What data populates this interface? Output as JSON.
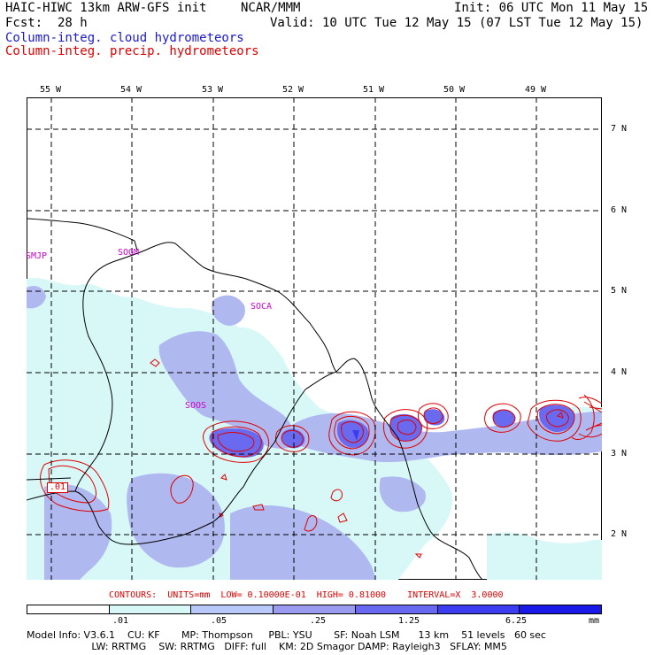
{
  "header": {
    "model": "HAIC-HIWC 13km ARW-GFS init",
    "agency": "NCAR/MMM",
    "init": "Init: 06 UTC Mon 11 May 15",
    "fcst_label": "Fcst:",
    "fcst_value": "28 h",
    "valid": "Valid: 10 UTC Tue 12 May 15 (07 LST Tue 12 May 15)"
  },
  "legend": {
    "cloud": "Column-integ. cloud hydrometeors",
    "precip": "Column-integ. precip. hydrometeors"
  },
  "axes": {
    "lon_labels": [
      "55 W",
      "54 W",
      "53 W",
      "52 W",
      "51 W",
      "50 W",
      "49 W"
    ],
    "lat_labels": [
      "7 N",
      "6 N",
      "5 N",
      "4 N",
      "3 N",
      "2 N"
    ]
  },
  "stations": [
    "SMJP",
    "SOGM",
    "SOCA",
    "SOOS"
  ],
  "contour_label": ".01",
  "contour_info": "CONTOURS:  UNITS=mm  LOW= 0.10000E-01  HIGH= 0.81000    INTERVAL=X  3.0000",
  "scale": {
    "ticks": [
      ".01",
      ".05",
      ".25",
      "1.25",
      "6.25"
    ],
    "units": "mm",
    "colors": [
      "#ffffff",
      "#d8f8f8",
      "#b8c8f8",
      "#9a9af0",
      "#6868f0",
      "#3c3cf0",
      "#1a1ae8"
    ]
  },
  "footer": {
    "line1": "Model Info: V3.6.1    CU: KF       MP: Thompson     PBL: YSU       SF: Noah LSM      13 km    51 levels   60 sec",
    "line2": "                     LW: RRTMG    SW: RRTMG   DIFF: full    KM: 2D Smagor DAMP: Rayleigh3   SFLAY: MM5"
  }
}
